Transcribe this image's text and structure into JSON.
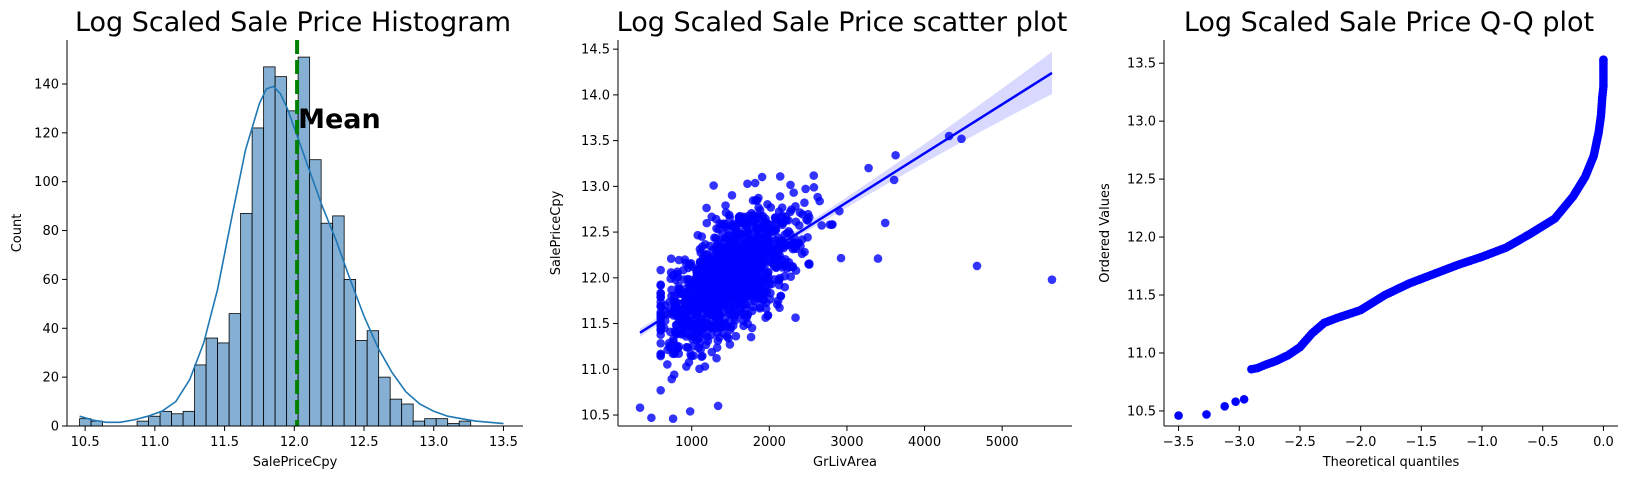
{
  "chart_data": [
    {
      "type": "bar",
      "title": "Log Scaled Sale Price Histogram",
      "xlabel": "SalePriceCpy",
      "ylabel": "Count",
      "xlim": [
        10.37,
        13.64
      ],
      "ylim": [
        0,
        158
      ],
      "xticks": [
        "10.5",
        "11.0",
        "11.5",
        "12.0",
        "12.5",
        "13.0",
        "13.5"
      ],
      "yticks": [
        "0",
        "20",
        "40",
        "60",
        "80",
        "100",
        "120",
        "140"
      ],
      "bin_start": 10.46,
      "bin_width": 0.0825,
      "values": [
        3,
        2,
        0,
        0,
        0,
        2,
        4,
        6,
        5,
        6,
        25,
        36,
        34,
        46,
        87,
        122,
        147,
        143,
        129,
        151,
        109,
        83,
        86,
        60,
        35,
        39,
        20,
        11,
        9,
        2,
        3,
        3,
        1,
        2
      ],
      "kde": {
        "x": [
          10.46,
          10.55,
          10.65,
          10.75,
          10.85,
          10.95,
          11.05,
          11.15,
          11.25,
          11.35,
          11.45,
          11.55,
          11.65,
          11.75,
          11.8,
          11.85,
          11.9,
          11.95,
          12.0,
          12.05,
          12.1,
          12.2,
          12.3,
          12.4,
          12.5,
          12.6,
          12.7,
          12.8,
          12.9,
          13.0,
          13.1,
          13.2,
          13.3,
          13.4,
          13.5
        ],
        "y": [
          4,
          2.5,
          1.5,
          1.5,
          2.5,
          4,
          6,
          10,
          19,
          34,
          56,
          85,
          113,
          132,
          138,
          139,
          136,
          130,
          122,
          114,
          106,
          90,
          76,
          60,
          45,
          32,
          22,
          14,
          9,
          6,
          4,
          3,
          2,
          1.5,
          1
        ]
      },
      "mean_line": {
        "x": 12.02,
        "color": "#008000",
        "label": "Mean"
      },
      "colors": {
        "bars": "#86b0d3",
        "bar_edge": "#000000",
        "kde": "#1f77b4"
      }
    },
    {
      "type": "scatter",
      "title": "Log Scaled Sale Price scatter plot",
      "xlabel": "GrLivArea",
      "ylabel": "SalePriceCpy",
      "xlim": [
        50,
        5900
      ],
      "ylim": [
        10.38,
        14.6
      ],
      "xticks": [
        "1000",
        "2000",
        "3000",
        "4000",
        "5000"
      ],
      "yticks": [
        "10.5",
        "11.0",
        "11.5",
        "12.0",
        "12.5",
        "13.0",
        "13.5",
        "14.0",
        "14.5"
      ],
      "outliers": [
        {
          "x": 334,
          "y": 10.58
        },
        {
          "x": 480,
          "y": 10.47
        },
        {
          "x": 760,
          "y": 10.46
        },
        {
          "x": 1340,
          "y": 10.6
        },
        {
          "x": 980,
          "y": 10.54
        },
        {
          "x": 4316,
          "y": 13.55
        },
        {
          "x": 4476,
          "y": 13.52
        },
        {
          "x": 4676,
          "y": 12.13
        },
        {
          "x": 5642,
          "y": 11.98
        },
        {
          "x": 3627,
          "y": 13.34
        },
        {
          "x": 3279,
          "y": 13.2
        },
        {
          "x": 3493,
          "y": 12.6
        },
        {
          "x": 3400,
          "y": 12.21
        },
        {
          "x": 3608,
          "y": 13.07
        }
      ],
      "cloud": {
        "n": 1250,
        "x_center": 1500,
        "y_intercept": 11.18,
        "slope_per_1000": 0.55,
        "x_sd": 500,
        "y_sd": 0.3
      },
      "regression": {
        "x": [
          334,
          5642
        ],
        "y": [
          11.4,
          14.24
        ],
        "ci_halfwidth_at_ends": [
          0.05,
          0.2
        ]
      },
      "colors": {
        "points": "#0000ff",
        "line": "#0000ff"
      }
    },
    {
      "type": "scatter",
      "title": "Log Scaled  Sale Price Q-Q plot",
      "xlabel": "Theoretical quantiles",
      "ylabel": "Ordered Values",
      "xlim": [
        -3.62,
        0.12
      ],
      "ylim": [
        10.37,
        13.7
      ],
      "xticks": [
        "−3.5",
        "−3.0",
        "−2.5",
        "−2.0",
        "−1.5",
        "−1.0",
        "−0.5",
        "0.0"
      ],
      "yticks": [
        "10.5",
        "11.0",
        "11.5",
        "12.0",
        "12.5",
        "13.0",
        "13.5"
      ],
      "points": [
        {
          "x": -3.5,
          "y": 10.46
        },
        {
          "x": -3.27,
          "y": 10.47
        },
        {
          "x": -3.12,
          "y": 10.54
        },
        {
          "x": -3.03,
          "y": 10.58
        },
        {
          "x": -2.96,
          "y": 10.6
        },
        {
          "x": -2.9,
          "y": 10.86
        },
        {
          "x": -2.85,
          "y": 10.87
        },
        {
          "x": -2.78,
          "y": 10.9
        },
        {
          "x": -2.7,
          "y": 10.93
        },
        {
          "x": -2.6,
          "y": 10.98
        },
        {
          "x": -2.5,
          "y": 11.05
        },
        {
          "x": -2.4,
          "y": 11.17
        },
        {
          "x": -2.3,
          "y": 11.26
        },
        {
          "x": -2.2,
          "y": 11.3
        },
        {
          "x": -2.0,
          "y": 11.37
        },
        {
          "x": -1.8,
          "y": 11.5
        },
        {
          "x": -1.6,
          "y": 11.6
        },
        {
          "x": -1.4,
          "y": 11.68
        },
        {
          "x": -1.2,
          "y": 11.76
        },
        {
          "x": -1.0,
          "y": 11.83
        },
        {
          "x": -0.8,
          "y": 11.91
        },
        {
          "x": -0.6,
          "y": 12.03
        },
        {
          "x": -0.4,
          "y": 12.16
        },
        {
          "x": -0.25,
          "y": 12.35
        },
        {
          "x": -0.15,
          "y": 12.52
        },
        {
          "x": -0.08,
          "y": 12.7
        },
        {
          "x": -0.04,
          "y": 12.9
        },
        {
          "x": -0.02,
          "y": 13.05
        },
        {
          "x": -0.01,
          "y": 13.2
        },
        {
          "x": 0.0,
          "y": 13.3
        },
        {
          "x": 0.0,
          "y": 13.52
        },
        {
          "x": 0.0,
          "y": 13.53
        }
      ],
      "colors": {
        "points": "#0000ff"
      }
    }
  ]
}
